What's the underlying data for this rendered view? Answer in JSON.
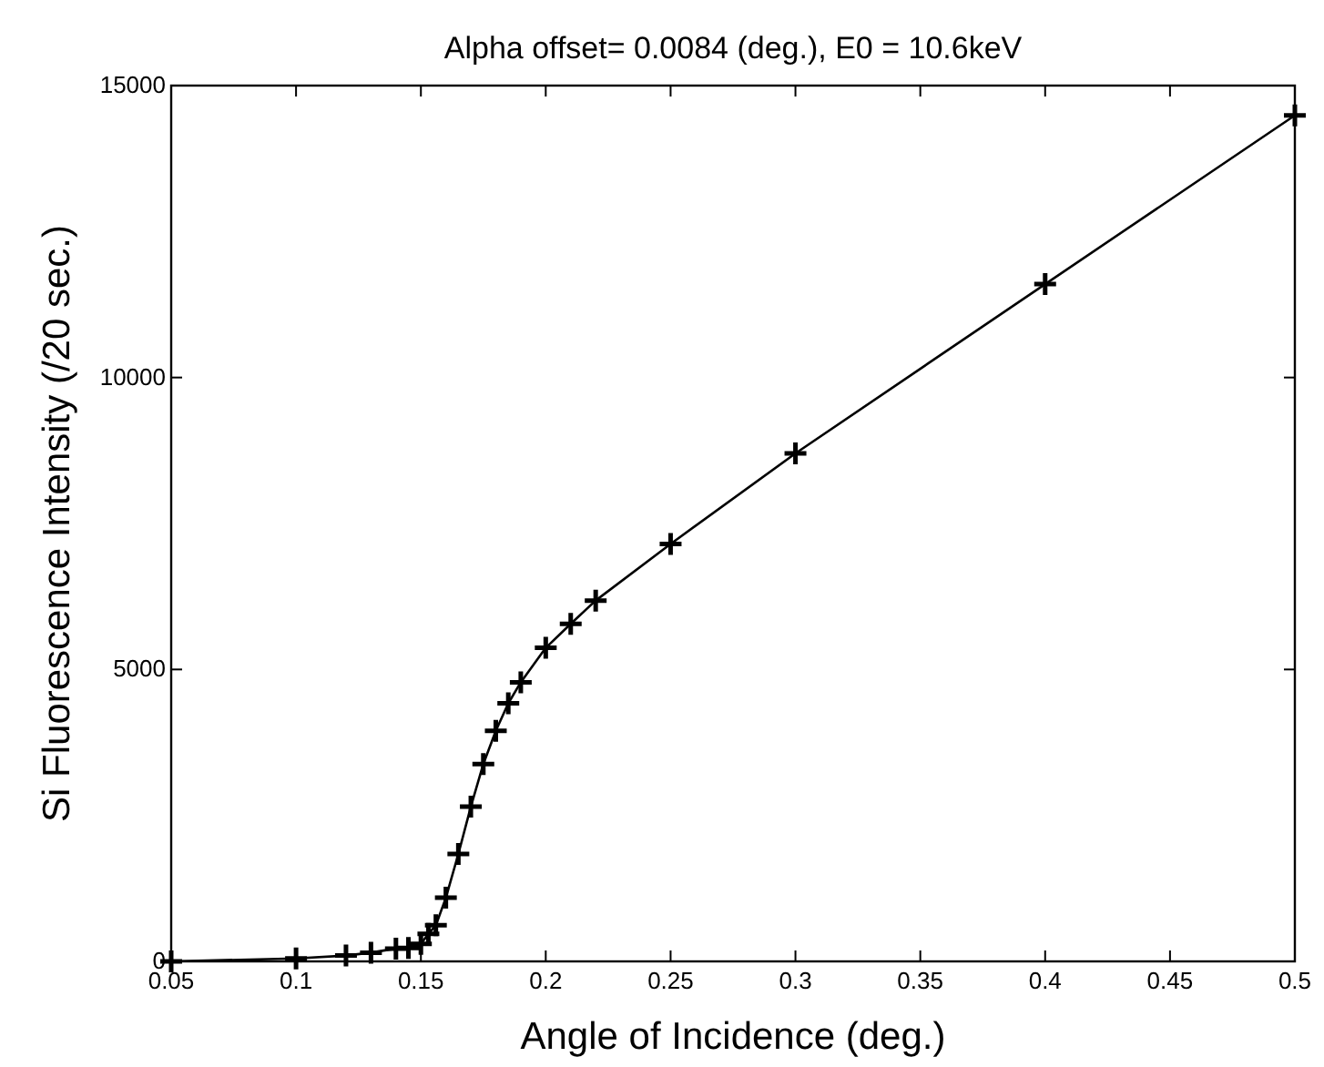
{
  "chart_data": {
    "type": "line",
    "title": "Alpha offset= 0.0084 (deg.),  E0 =  10.6keV",
    "xlabel": "Angle of Incidence (deg.)",
    "ylabel": "Si Fluorescence Intensity (/20 sec.)",
    "x": [
      0.05,
      0.1,
      0.12,
      0.13,
      0.14,
      0.145,
      0.15,
      0.153,
      0.156,
      0.16,
      0.165,
      0.17,
      0.175,
      0.18,
      0.185,
      0.19,
      0.2,
      0.21,
      0.22,
      0.25,
      0.3,
      0.4,
      0.5
    ],
    "series": [
      {
        "color": "#000000",
        "values": [
          0,
          50,
          100,
          150,
          220,
          230,
          300,
          470,
          620,
          1090,
          1840,
          2650,
          3380,
          3950,
          4420,
          4780,
          5370,
          5780,
          6180,
          7150,
          8700,
          11600,
          14490
        ]
      }
    ],
    "xlim": [
      0.05,
      0.5
    ],
    "xticks": [
      0.05,
      0.1,
      0.15,
      0.2,
      0.25,
      0.3,
      0.35,
      0.4,
      0.45,
      0.5
    ],
    "ylim": [
      0,
      15000
    ],
    "yticks": [
      0,
      5000,
      10000,
      15000
    ],
    "grid": false,
    "marker": "cross",
    "line_style": "solid"
  }
}
